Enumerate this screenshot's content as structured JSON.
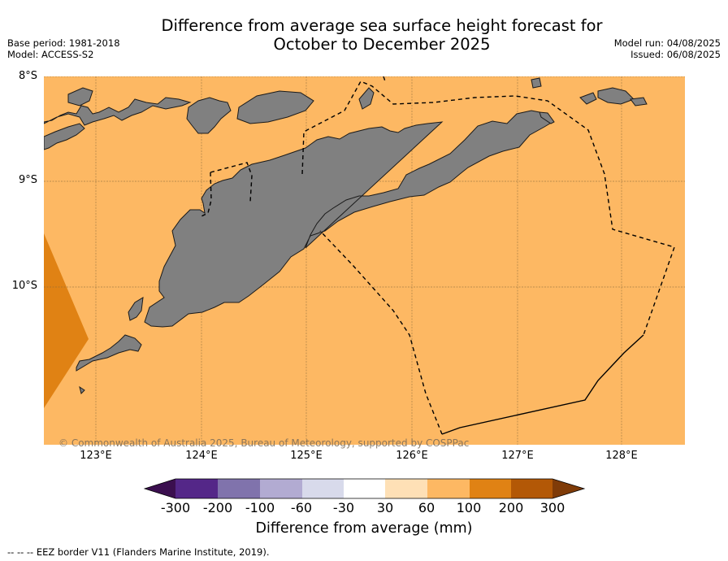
{
  "title_line1": "Difference from average sea surface height forecast for",
  "title_line2": "October to December 2025",
  "base_period": "Base period: 1981-2018",
  "model": "Model: ACCESS-S2",
  "model_run": "Model run: 04/08/2025",
  "issued": "Issued: 06/08/2025",
  "lat_labels": [
    "8°S",
    "9°S",
    "10°S"
  ],
  "lon_labels": [
    "123°E",
    "124°E",
    "125°E",
    "126°E",
    "127°E",
    "128°E"
  ],
  "copyright": "© Commonwealth of Australia 2025, Bureau of Meteorology, supported by COSPPac",
  "colorbar": {
    "ticks": [
      "-300",
      "-200",
      "-100",
      "-60",
      "-30",
      "30",
      "60",
      "100",
      "200",
      "300"
    ],
    "colors": [
      "#3b0f4f",
      "#542788",
      "#8073ac",
      "#b2abd2",
      "#d8daeb",
      "#ffffff",
      "#fee0b6",
      "#fdb863",
      "#e08214",
      "#b35806",
      "#7f3b08"
    ],
    "label": "Difference from average (mm)"
  },
  "map_colors": {
    "ocean": "#fdb863",
    "ocean_high": "#e08214",
    "land": "#808080"
  },
  "footer": "-- -- -- EEZ border V11 (Flanders Marine Institute, 2019)."
}
